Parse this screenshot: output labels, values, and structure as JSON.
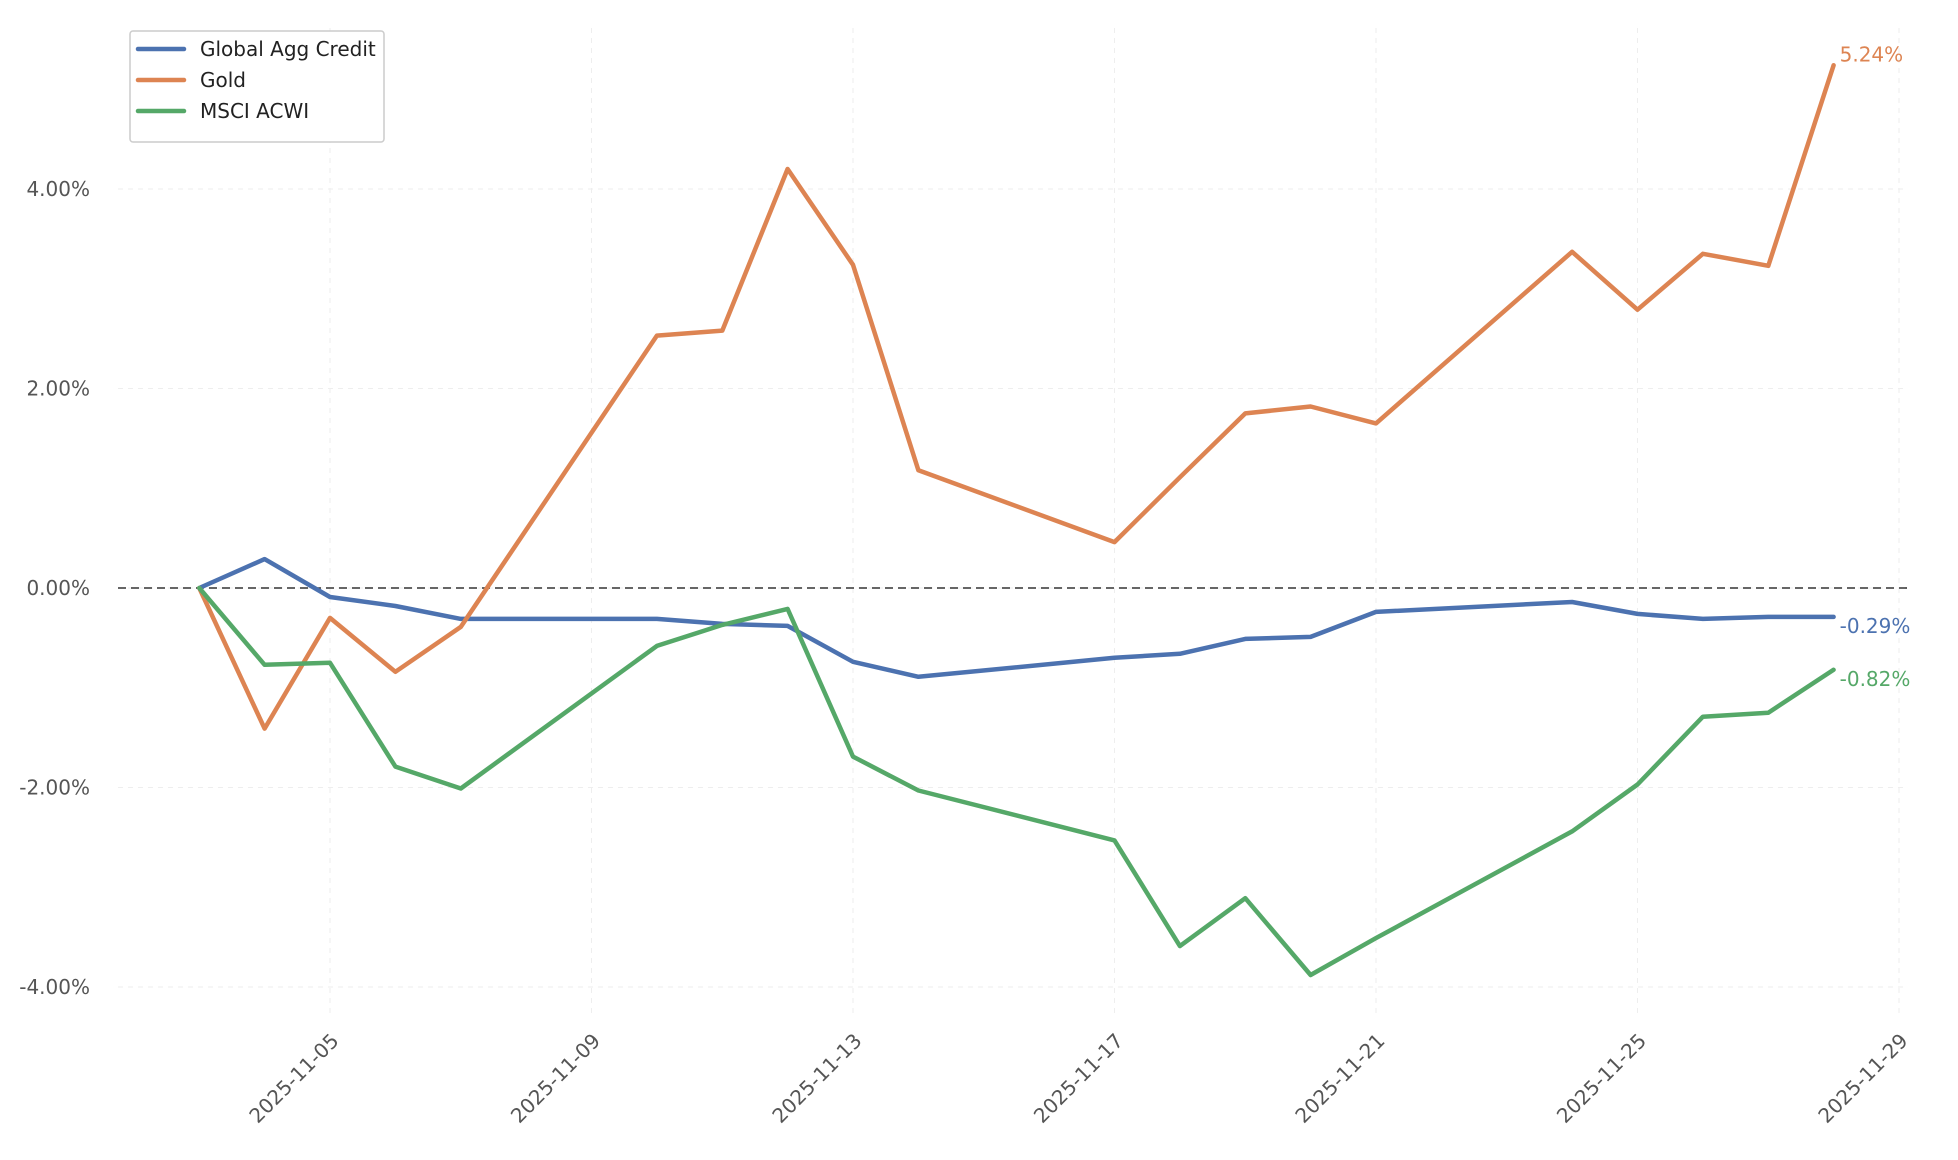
{
  "chart_data": {
    "type": "line",
    "title": "",
    "xlabel": "",
    "ylabel": "",
    "ylim": [
      -4.35,
      5.8
    ],
    "xlim": [
      "2025-11-01",
      "2025-11-29"
    ],
    "grid": true,
    "zero_reference_line": true,
    "legend_position": "top-left",
    "x_ticks": [
      "2025-11-05",
      "2025-11-09",
      "2025-11-13",
      "2025-11-17",
      "2025-11-21",
      "2025-11-25",
      "2025-11-29"
    ],
    "y_ticks": [
      {
        "value": -4,
        "label": "-4.00%"
      },
      {
        "value": -2,
        "label": "-2.00%"
      },
      {
        "value": 0,
        "label": "0.00%"
      },
      {
        "value": 2,
        "label": "2.00%"
      },
      {
        "value": 4,
        "label": "4.00%"
      }
    ],
    "series": [
      {
        "name": "Global Agg Credit",
        "color": "#4c72b0",
        "end_label": "-0.29%",
        "points": [
          [
            "2025-11-03",
            0.0
          ],
          [
            "2025-11-04",
            0.29
          ],
          [
            "2025-11-05",
            -0.09
          ],
          [
            "2025-11-06",
            -0.18
          ],
          [
            "2025-11-07",
            -0.31
          ],
          [
            "2025-11-10",
            -0.31
          ],
          [
            "2025-11-11",
            -0.36
          ],
          [
            "2025-11-12",
            -0.38
          ],
          [
            "2025-11-13",
            -0.74
          ],
          [
            "2025-11-14",
            -0.89
          ],
          [
            "2025-11-17",
            -0.7
          ],
          [
            "2025-11-18",
            -0.66
          ],
          [
            "2025-11-19",
            -0.51
          ],
          [
            "2025-11-20",
            -0.49
          ],
          [
            "2025-11-21",
            -0.24
          ],
          [
            "2025-11-24",
            -0.14
          ],
          [
            "2025-11-25",
            -0.26
          ],
          [
            "2025-11-26",
            -0.31
          ],
          [
            "2025-11-27",
            -0.29
          ],
          [
            "2025-11-28",
            -0.29
          ]
        ]
      },
      {
        "name": "Gold",
        "color": "#dd8452",
        "end_label": "5.24%",
        "points": [
          [
            "2025-11-03",
            0.0
          ],
          [
            "2025-11-04",
            -1.41
          ],
          [
            "2025-11-05",
            -0.3
          ],
          [
            "2025-11-06",
            -0.84
          ],
          [
            "2025-11-07",
            -0.39
          ],
          [
            "2025-11-10",
            2.53
          ],
          [
            "2025-11-11",
            2.58
          ],
          [
            "2025-11-12",
            4.2
          ],
          [
            "2025-11-13",
            3.24
          ],
          [
            "2025-11-14",
            1.18
          ],
          [
            "2025-11-17",
            0.46
          ],
          [
            "2025-11-18",
            1.11
          ],
          [
            "2025-11-19",
            1.75
          ],
          [
            "2025-11-20",
            1.82
          ],
          [
            "2025-11-21",
            1.65
          ],
          [
            "2025-11-24",
            3.37
          ],
          [
            "2025-11-25",
            2.79
          ],
          [
            "2025-11-26",
            3.35
          ],
          [
            "2025-11-27",
            3.23
          ],
          [
            "2025-11-28",
            5.24
          ]
        ]
      },
      {
        "name": "MSCI ACWI",
        "color": "#55a868",
        "end_label": "-0.82%",
        "points": [
          [
            "2025-11-03",
            0.0
          ],
          [
            "2025-11-04",
            -0.77
          ],
          [
            "2025-11-05",
            -0.75
          ],
          [
            "2025-11-06",
            -1.79
          ],
          [
            "2025-11-07",
            -2.01
          ],
          [
            "2025-11-10",
            -0.58
          ],
          [
            "2025-11-11",
            -0.37
          ],
          [
            "2025-11-12",
            -0.21
          ],
          [
            "2025-11-13",
            -1.69
          ],
          [
            "2025-11-14",
            -2.03
          ],
          [
            "2025-11-17",
            -2.53
          ],
          [
            "2025-11-18",
            -3.59
          ],
          [
            "2025-11-19",
            -3.11
          ],
          [
            "2025-11-20",
            -3.88
          ],
          [
            "2025-11-21",
            -3.51
          ],
          [
            "2025-11-24",
            -2.44
          ],
          [
            "2025-11-25",
            -1.97
          ],
          [
            "2025-11-26",
            -1.29
          ],
          [
            "2025-11-27",
            -1.25
          ],
          [
            "2025-11-28",
            -0.82
          ]
        ]
      }
    ]
  }
}
